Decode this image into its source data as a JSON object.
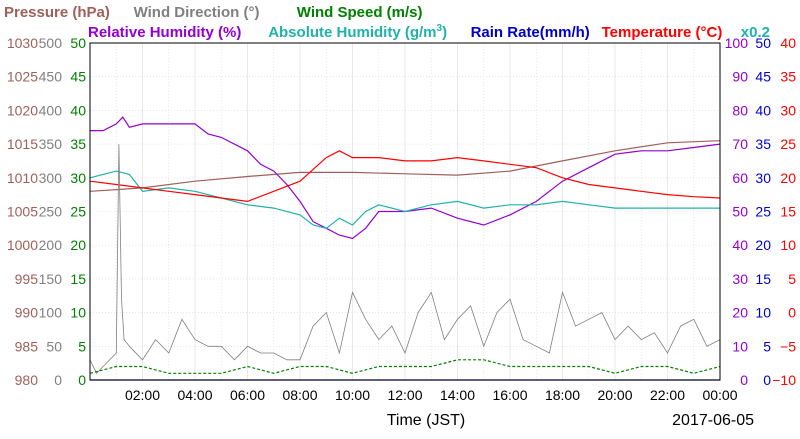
{
  "legend": {
    "row1": [
      {
        "text": "Pressure (hPa)",
        "color": "#a0605a"
      },
      {
        "text": "Wind Direction (°)",
        "color": "#808080"
      },
      {
        "text": "Wind Speed (m/s)",
        "color": "#008000"
      }
    ],
    "row2": [
      {
        "text": "Relative Humidity (%)",
        "color": "#9400d3"
      },
      {
        "text": "Absolute Humidity (g/m",
        "sup": "3",
        "close": ")",
        "color": "#20b2aa"
      },
      {
        "text": "Rain Rate(mm/h)",
        "color": "#0000cd"
      },
      {
        "text": "Temperature (°C)",
        "color": "#ff0000"
      },
      {
        "text": "x0.2",
        "color": "#20b2aa"
      }
    ]
  },
  "date_label": "2017-06-05",
  "colors": {
    "pressure": "#a0605a",
    "wind_direction": "#808080",
    "wind_speed": "#008000",
    "relative_humidity": "#9400d3",
    "absolute_humidity": "#20b2aa",
    "rain_rate": "#0000cd",
    "temperature": "#ff0000"
  },
  "chart_data": {
    "type": "line",
    "xlabel": "Time (JST)",
    "x_ticks": [
      "02:00",
      "04:00",
      "06:00",
      "08:00",
      "10:00",
      "12:00",
      "14:00",
      "16:00",
      "18:00",
      "20:00",
      "22:00",
      "00:00"
    ],
    "x_range_hours": [
      0,
      24
    ],
    "grid": true,
    "axes": {
      "pressure": {
        "min": 980,
        "max": 1030,
        "ticks": [
          "1030",
          "1025",
          "1020",
          "1015",
          "1010",
          "1005",
          "1000",
          "995",
          "990",
          "985",
          "980"
        ]
      },
      "wind_direction": {
        "min": 0,
        "max": 500,
        "ticks": [
          "500",
          "450",
          "400",
          "350",
          "300",
          "250",
          "200",
          "150",
          "100",
          "50",
          "0"
        ]
      },
      "wind_speed": {
        "min": 0,
        "max": 50,
        "ticks": [
          "50",
          "45",
          "40",
          "35",
          "30",
          "25",
          "20",
          "15",
          "10",
          "5",
          "0"
        ]
      },
      "relative_humidity": {
        "min": 0,
        "max": 100,
        "ticks": [
          "100",
          "90",
          "80",
          "70",
          "60",
          "50",
          "40",
          "30",
          "20",
          "10",
          "0"
        ]
      },
      "rain_rate": {
        "min": 0,
        "max": 50,
        "ticks": [
          "50",
          "45",
          "40",
          "35",
          "30",
          "25",
          "20",
          "15",
          "10",
          "5",
          "0"
        ]
      },
      "temperature": {
        "min": -10,
        "max": 40,
        "ticks": [
          "40",
          "35",
          "30",
          "25",
          "20",
          "15",
          "10",
          "5",
          "0",
          "−5",
          "−10"
        ]
      }
    },
    "series": [
      {
        "name": "Pressure",
        "key": "pressure",
        "axis": "pressure",
        "x": [
          0,
          2,
          4,
          6,
          8,
          10,
          12,
          14,
          16,
          18,
          20,
          22,
          24
        ],
        "y": [
          1008,
          1008.5,
          1009.5,
          1010.2,
          1010.8,
          1010.8,
          1010.6,
          1010.4,
          1011,
          1012.5,
          1014,
          1015.2,
          1015.5
        ]
      },
      {
        "name": "Relative Humidity",
        "key": "relative_humidity",
        "axis": "relative_humidity",
        "x": [
          0,
          0.5,
          1,
          1.25,
          1.5,
          2,
          3,
          4,
          4.5,
          5,
          6,
          6.5,
          7,
          7.5,
          8,
          8.5,
          9,
          9.5,
          10,
          10.5,
          11,
          12,
          13,
          14,
          15,
          16,
          17,
          18,
          19,
          20,
          21,
          22,
          23,
          24
        ],
        "y": [
          74,
          74,
          76,
          78,
          75,
          76,
          76,
          76,
          73,
          72,
          68,
          64,
          62,
          58,
          53,
          47,
          45,
          43,
          42,
          45,
          50,
          50,
          51,
          48,
          46,
          49,
          53,
          59,
          63,
          67,
          68,
          68,
          69,
          70
        ]
      },
      {
        "name": "Absolute Humidity",
        "key": "absolute_humidity",
        "axis": "relative_humidity",
        "x": [
          0,
          0.5,
          1,
          1.5,
          2,
          3,
          4,
          5,
          6,
          7,
          8,
          8.5,
          9,
          9.5,
          10,
          10.5,
          11,
          12,
          13,
          14,
          15,
          16,
          17,
          18,
          19,
          20,
          21,
          22,
          23,
          24
        ],
        "y": [
          60,
          61,
          62,
          61,
          56,
          57,
          56,
          54,
          52,
          51,
          49,
          46,
          45,
          48,
          46,
          50,
          52,
          50,
          52,
          53,
          51,
          52,
          52,
          53,
          52,
          51,
          51,
          51,
          51,
          51
        ]
      },
      {
        "name": "Temperature",
        "key": "temperature",
        "axis": "temperature",
        "x": [
          0,
          1,
          2,
          3,
          4,
          5,
          6,
          7,
          8,
          9,
          9.5,
          10,
          11,
          12,
          13,
          14,
          15,
          16,
          17,
          18,
          19,
          20,
          21,
          22,
          23,
          24
        ],
        "y": [
          19.5,
          19,
          18.5,
          18,
          17.5,
          17,
          16.5,
          18,
          19.5,
          23,
          24,
          23,
          23,
          22.5,
          22.5,
          23,
          22.5,
          22,
          21.5,
          20,
          19,
          18.5,
          18,
          17.5,
          17.2,
          17
        ]
      },
      {
        "name": "Wind Direction",
        "key": "wind_direction",
        "axis": "wind_direction",
        "x": [
          0,
          0.25,
          0.5,
          1,
          1.1,
          1.2,
          1.3,
          1.5,
          2,
          2.5,
          3,
          3.5,
          4,
          4.5,
          5,
          5.5,
          6,
          6.5,
          7,
          7.5,
          8,
          8.5,
          9,
          9.5,
          10,
          10.5,
          11,
          11.5,
          12,
          12.5,
          13,
          13.5,
          14,
          14.5,
          15,
          15.5,
          16,
          16.5,
          17,
          17.5,
          18,
          18.5,
          19,
          19.5,
          20,
          20.5,
          21,
          21.5,
          22,
          22.5,
          23,
          23.5,
          24
        ],
        "y": [
          30,
          10,
          20,
          40,
          350,
          120,
          60,
          50,
          30,
          60,
          40,
          90,
          60,
          50,
          50,
          30,
          50,
          40,
          40,
          30,
          30,
          80,
          100,
          40,
          130,
          90,
          60,
          80,
          40,
          100,
          130,
          60,
          90,
          110,
          50,
          100,
          120,
          60,
          50,
          40,
          130,
          80,
          90,
          100,
          60,
          80,
          60,
          70,
          40,
          80,
          90,
          50,
          60
        ]
      },
      {
        "name": "Wind Speed",
        "key": "wind_speed",
        "axis": "wind_speed",
        "x": [
          0,
          1,
          2,
          3,
          4,
          5,
          6,
          7,
          8,
          9,
          10,
          11,
          12,
          13,
          14,
          15,
          16,
          17,
          18,
          19,
          20,
          21,
          22,
          23,
          24
        ],
        "y": [
          1,
          2,
          2,
          1,
          1,
          1,
          2,
          1,
          2,
          2,
          1,
          2,
          2,
          2,
          3,
          3,
          2,
          2,
          2,
          2,
          1,
          2,
          2,
          1,
          2
        ]
      },
      {
        "name": "Rain Rate",
        "key": "rain_rate",
        "axis": "rain_rate",
        "x": [
          0,
          24
        ],
        "y": [
          0,
          0
        ]
      }
    ]
  }
}
